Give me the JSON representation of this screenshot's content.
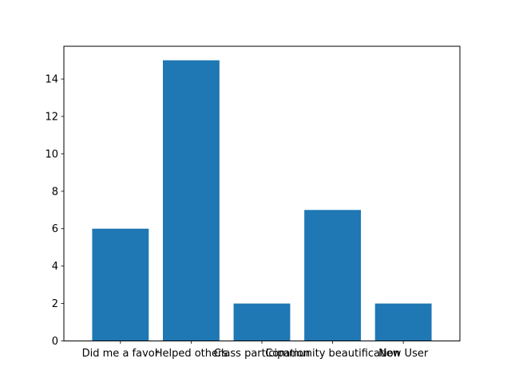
{
  "chart_data": {
    "type": "bar",
    "title": "",
    "xlabel": "",
    "ylabel": "",
    "categories": [
      "Did me a favor",
      "Helped others",
      "Class participation",
      "Community beautification",
      "New User"
    ],
    "values": [
      6,
      15,
      2,
      7,
      2
    ],
    "ylim": [
      0,
      15.75
    ],
    "yticks": [
      0,
      2,
      4,
      6,
      8,
      10,
      12,
      14
    ],
    "grid": false,
    "legend": "none",
    "bar_color": "#1f77b4"
  }
}
